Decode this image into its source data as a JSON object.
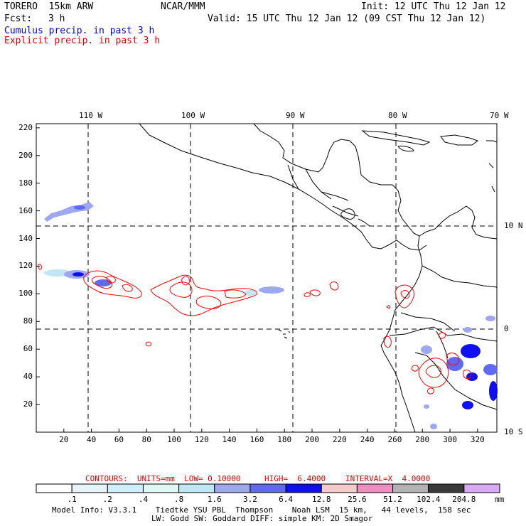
{
  "header": {
    "run_name": "TORERO  15km ARW",
    "org": "NCAR/MMM",
    "init": "Init: 12 UTC Thu 12 Jan 12",
    "fcst_label": "Fcst:",
    "fcst_value": "3 h",
    "valid": "Valid: 15 UTC Thu 12 Jan 12 (09 CST Thu 12 Jan 12)",
    "line_cumulus": "Cumulus precip. in past 3 h",
    "line_explicit": "Explicit precip. in past 3 h"
  },
  "colors": {
    "cumulus": "#0000cc",
    "explicit": "#dd0000",
    "coast": "#000000",
    "contour": "#ff0000"
  },
  "axes": {
    "top_lon_labels": [
      "110 W",
      "100 W",
      "90 W",
      "80 W",
      "70 W"
    ],
    "right_lat_labels": [
      "10 N",
      "0",
      "10 S"
    ],
    "y_ticks": [
      "220",
      "200",
      "180",
      "160",
      "140",
      "120",
      "100",
      "80",
      "60",
      "40",
      "20"
    ],
    "x_ticks": [
      "20",
      "40",
      "60",
      "80",
      "100",
      "120",
      "140",
      "160",
      "180",
      "200",
      "220",
      "240",
      "260",
      "280",
      "300",
      "320"
    ],
    "x_range": [
      0,
      334
    ],
    "y_range": [
      0,
      223
    ],
    "lon_grid": [
      110,
      100,
      90,
      80
    ],
    "lat_grid": [
      10,
      0
    ]
  },
  "contour_info": {
    "text_contours": "CONTOURS:  UNITS=mm  LOW= 0.10000",
    "text_high": "HIGH=  6.4000",
    "text_interval": "INTERVAL=X  4.0000"
  },
  "colorbar": {
    "labels": [
      ".1",
      ".2",
      ".4",
      ".8",
      "1.6",
      "3.2",
      "6.4",
      "12.8",
      "25.6",
      "51.2",
      "102.4",
      "204.8"
    ],
    "unit": "mm",
    "colors": [
      "#ffffff",
      "#e8f4fb",
      "#cfeefc",
      "#dff8f4",
      "#bfe6f5",
      "#9da8f0",
      "#5f6af0",
      "#1010ee",
      "#f4caca",
      "#f08cc0",
      "#b3b3b3",
      "#3a3a3a",
      "#d8aaf6"
    ]
  },
  "footer": {
    "line1": "Model Info: V3.3.1    Tiedtke YSU PBL  Thompson    Noah LSM  15 km,   44 levels,  158 sec",
    "line2": "LW: Godd SW: Goddard DIFF: simple KM: 2D Smagor"
  }
}
